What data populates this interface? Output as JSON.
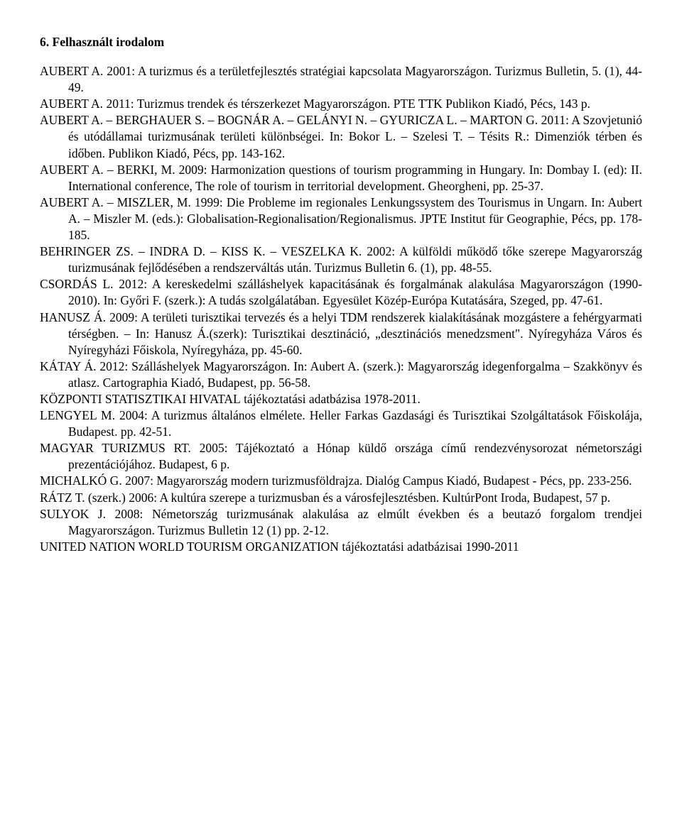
{
  "title": "6. Felhasznált irodalom",
  "entries": [
    {
      "author": "AUBERT A.",
      "rest": " 2001: A turizmus és a területfejlesztés stratégiai kapcsolata Magyarországon. Turizmus Bulletin, 5. (1), 44-49."
    },
    {
      "author": "AUBERT A.",
      "rest": " 2011: Turizmus trendek és térszerkezet Magyarországon. PTE TTK Publikon Kiadó, Pécs, 143 p."
    },
    {
      "author": "AUBERT A. – BERGHAUER S. – BOGNÁR A. – GELÁNYI N. – GYURICZA L. – MARTON G.",
      "rest": " 2011: A Szovjetunió és utódállamai turizmusának területi különbségei. In: Bokor L. – Szelesi T. – Tésits R.: Dimenziók térben és időben. Publikon Kiadó, Pécs, pp. 143-162."
    },
    {
      "author": "AUBERT A. – BERKI, M.",
      "rest": " 2009: Harmonization questions of tourism programming in Hungary. In: Dombay I. (ed): II. International conference, The role of tourism in territorial development. Gheorgheni, pp. 25-37."
    },
    {
      "author": "AUBERT A. – MISZLER, M.",
      "rest": " 1999: Die Probleme im regionales Lenkungssystem des Tourismus in Ungarn. In: Aubert A. – Miszler M. (eds.): Globalisation-Regionalisation/Regionalismus. JPTE Institut für Geographie, Pécs, pp. 178-185."
    },
    {
      "author": "BEHRINGER ZS. – INDRA D. – KISS K. – VESZELKA K.",
      "rest": " 2002: A külföldi működő tőke szerepe Magyarország turizmusának fejlődésében a rendszerváltás után. Turizmus Bulletin 6. (1), pp. 48-55."
    },
    {
      "author": "CSORDÁS L.",
      "rest": " 2012: A kereskedelmi szálláshelyek kapacitásának és forgalmának alakulása Magyarországon (1990-2010). In: Győri F. (szerk.): A tudás szolgálatában. Egyesület Közép-Európa Kutatására, Szeged, pp. 47-61."
    },
    {
      "author": "HANUSZ Á.",
      "rest": " 2009: A területi turisztikai tervezés és a helyi TDM rendszerek kialakításának mozgástere a fehérgyarmati térségben. – In: Hanusz Á.(szerk): Turisztikai desztináció, „desztinációs menedzsment\". Nyíregyháza Város és Nyíregyházi Főiskola, Nyíregyháza, pp. 45-60."
    },
    {
      "author": "KÁTAY Á.",
      "rest": " 2012: Szálláshelyek Magyarországon. In: Aubert A. (szerk.): Magyarország idegenforgalma – Szakkönyv és atlasz. Cartographia Kiadó, Budapest, pp. 56-58."
    },
    {
      "author": "KÖZPONTI STATISZTIKAI HIVATAL",
      "rest": " tájékoztatási adatbázisa 1978-2011."
    },
    {
      "author": "LENGYEL M.",
      "rest": " 2004: A turizmus általános elmélete. Heller Farkas Gazdasági és Turisztikai Szolgáltatások Főiskolája, Budapest. pp. 42-51."
    },
    {
      "author": "MAGYAR TURIZMUS RT.",
      "rest": " 2005: Tájékoztató a Hónap küldő országa című rendezvénysorozat németországi prezentációjához. Budapest, 6 p."
    },
    {
      "author": "MICHALKÓ G.",
      "rest": " 2007: Magyarország modern turizmusföldrajza. Dialóg Campus Kiadó, Budapest - Pécs, pp. 233-256."
    },
    {
      "author": "RÁTZ T.",
      "rest": " (szerk.) 2006: A kultúra szerepe a turizmusban és a városfejlesztésben. KultúrPont Iroda, Budapest, 57 p."
    },
    {
      "author": "SULYOK J.",
      "rest": " 2008: Németország turizmusának alakulása az elmúlt években és a beutazó forgalom trendjei Magyarországon. Turizmus Bulletin 12 (1) pp. 2-12."
    },
    {
      "author": "UNITED NATION WORLD TOURISM ORGANIZATION",
      "rest": " tájékoztatási adatbázisai 1990-2011"
    }
  ]
}
